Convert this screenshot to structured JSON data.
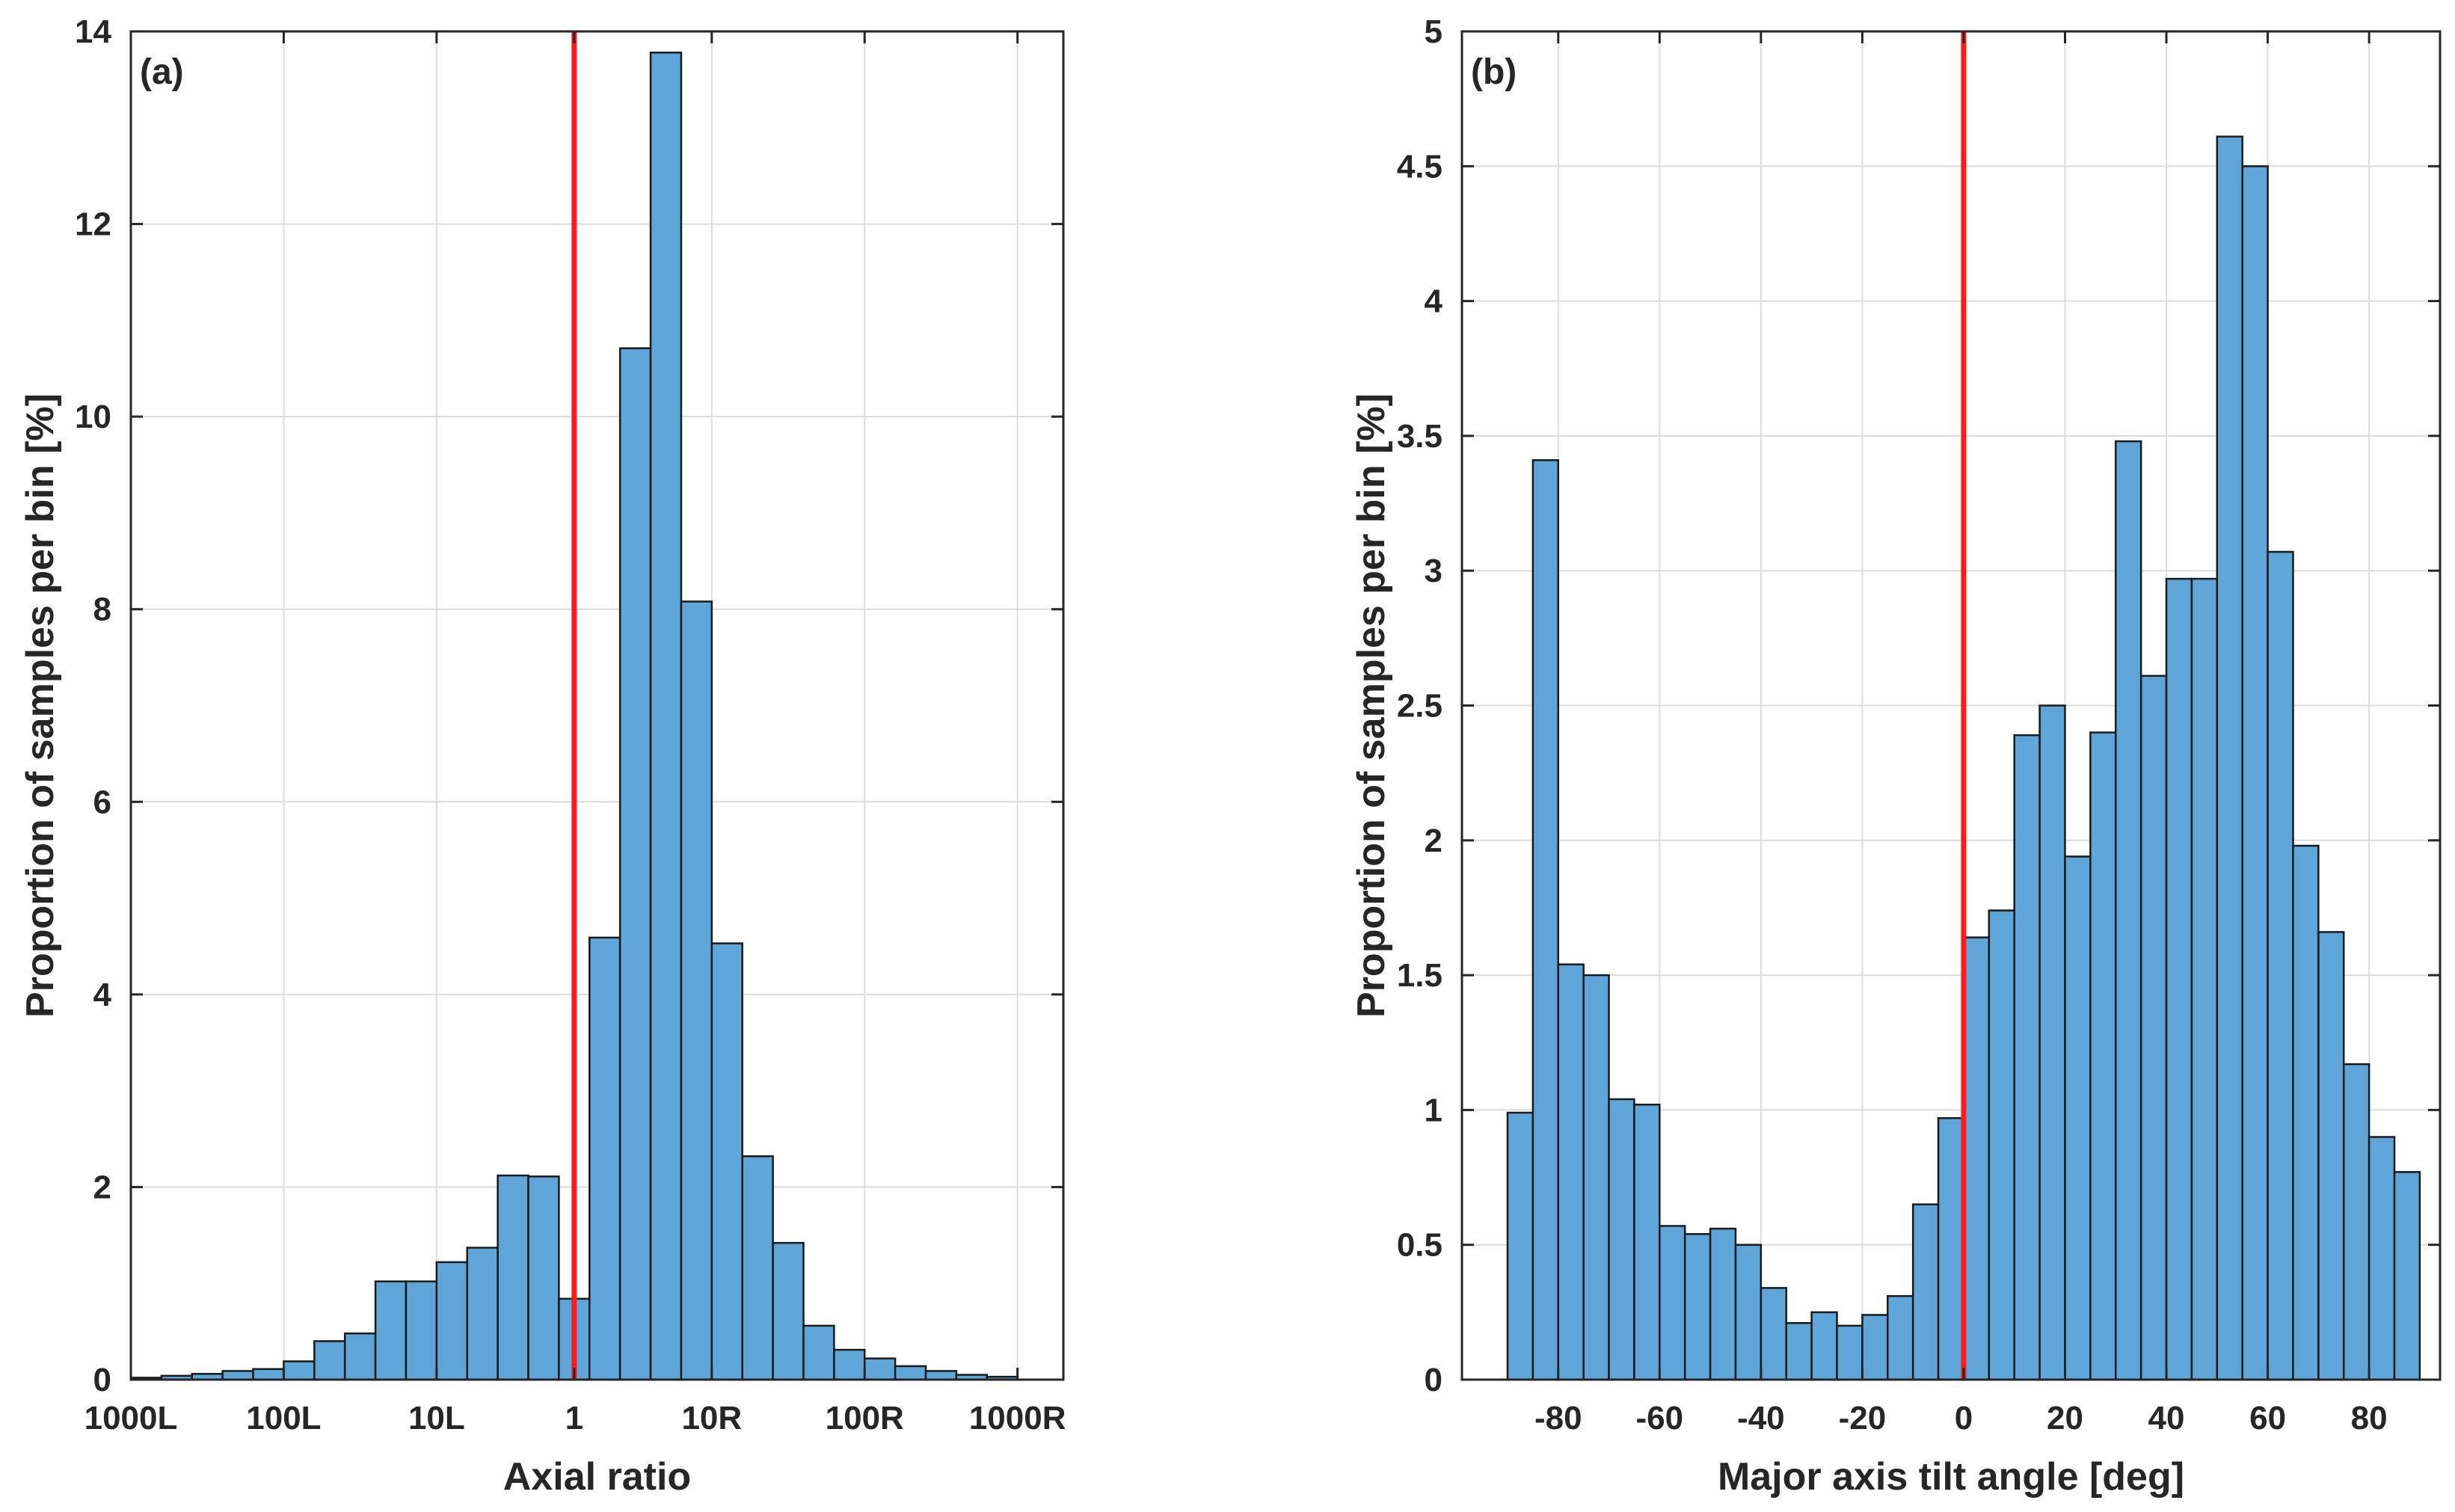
{
  "colors": {
    "bar": "#5fa5d7",
    "refline": "#ff1a1a"
  },
  "chart_data": [
    {
      "type": "bar",
      "panel_label": "(a)",
      "xlabel": "Axial ratio",
      "ylabel": "Proportion of samples per bin [%]",
      "ylim": [
        0,
        14
      ],
      "xlim": [
        0,
        30.5
      ],
      "grid": true,
      "xticks": [
        {
          "v": 0,
          "label": "1000L"
        },
        {
          "v": 5,
          "label": "100L"
        },
        {
          "v": 10,
          "label": "10L"
        },
        {
          "v": 14.5,
          "label": "1"
        },
        {
          "v": 19,
          "label": "10R"
        },
        {
          "v": 24,
          "label": "100R"
        },
        {
          "v": 29,
          "label": "1000R"
        }
      ],
      "yticks": [
        0,
        2,
        4,
        6,
        8,
        10,
        12,
        14
      ],
      "refline": 14.5,
      "bin_edges_start": 0,
      "bin_width": 1,
      "values": [
        0.02,
        0.04,
        0.06,
        0.09,
        0.11,
        0.19,
        0.4,
        0.48,
        1.02,
        1.02,
        1.22,
        1.37,
        2.12,
        2.11,
        0.84,
        4.59,
        10.71,
        13.78,
        8.08,
        4.53,
        2.32,
        1.42,
        0.56,
        0.31,
        0.22,
        0.14,
        0.09,
        0.05,
        0.03
      ]
    },
    {
      "type": "bar",
      "panel_label": "(b)",
      "xlabel": "Major axis tilt angle [deg]",
      "ylabel": "Proportion of samples per bin [%]",
      "ylim": [
        0,
        5
      ],
      "xlim": [
        -99,
        94
      ],
      "grid": true,
      "xticks": [
        {
          "v": -80,
          "label": "-80"
        },
        {
          "v": -60,
          "label": "-60"
        },
        {
          "v": -40,
          "label": "-40"
        },
        {
          "v": -20,
          "label": "-20"
        },
        {
          "v": 0,
          "label": "0"
        },
        {
          "v": 20,
          "label": "20"
        },
        {
          "v": 40,
          "label": "40"
        },
        {
          "v": 60,
          "label": "60"
        },
        {
          "v": 80,
          "label": "80"
        }
      ],
      "yticks": [
        0,
        0.5,
        1,
        1.5,
        2,
        2.5,
        3,
        3.5,
        4,
        4.5,
        5
      ],
      "refline": 0,
      "bin_edges_start": -90,
      "bin_width": 5,
      "values": [
        0.99,
        3.41,
        1.54,
        1.5,
        1.04,
        1.02,
        0.57,
        0.54,
        0.56,
        0.5,
        0.34,
        0.21,
        0.25,
        0.2,
        0.24,
        0.31,
        0.65,
        0.97,
        1.64,
        1.74,
        2.39,
        2.5,
        1.94,
        2.4,
        3.48,
        2.61,
        2.97,
        2.97,
        4.61,
        4.5,
        3.07,
        1.98,
        1.66,
        1.17,
        0.9,
        0.77
      ]
    }
  ]
}
